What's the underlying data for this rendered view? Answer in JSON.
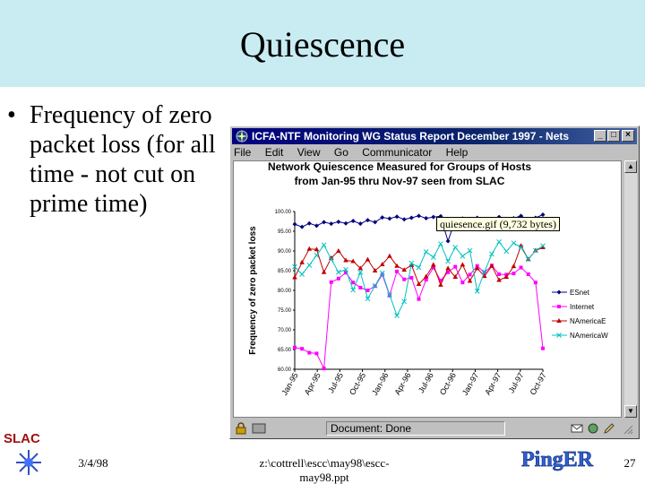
{
  "slide": {
    "title": "Quiescence",
    "bullet_mark": "•",
    "bullet_text": "Frequency of zero packet loss (for all time - not cut on prime time)",
    "date": "3/4/98",
    "path_line1": "z:\\cottrell\\escc\\may98\\escc-",
    "path_line2": "may98.ppt",
    "page_number": "27",
    "logo_slac": "SLAC",
    "logo_pinger": "PingER"
  },
  "window": {
    "title": "ICFA-NTF Monitoring WG Status Report December 1997 - Nets",
    "menu": [
      "File",
      "Edit",
      "View",
      "Go",
      "Communicator",
      "Help"
    ],
    "tooltip": "quiesence.gif (9,732 bytes)",
    "status": "Document: Done"
  },
  "chart_data": {
    "type": "line",
    "title": "Network Quiescence Measured for Groups of Hosts",
    "subtitle": "from Jan-95 thru Nov-97 seen from SLAC",
    "ylabel": "Frequency of zero packet loss",
    "xlabel": "",
    "ylim": [
      60,
      100
    ],
    "yticks": [
      "100.00",
      "95.00",
      "90.00",
      "85.00",
      "80.00",
      "75.00",
      "70.00",
      "65.00",
      "60.00"
    ],
    "xticks": [
      "Jan-95",
      "Apr-95",
      "Jul-95",
      "Oct-95",
      "Jan-96",
      "Apr-96",
      "Jul-96",
      "Oct-96",
      "Jan-97",
      "Apr-97",
      "Jul-97",
      "Oct-97"
    ],
    "n_points": 35,
    "series": [
      {
        "name": "ESnet",
        "color": "#000080",
        "marker": "diamond",
        "values": [
          96.8,
          96.1,
          97.0,
          96.4,
          97.3,
          96.9,
          97.4,
          97.0,
          97.6,
          96.9,
          97.8,
          97.3,
          98.5,
          98.2,
          98.7,
          98.0,
          98.4,
          98.9,
          98.3,
          98.6,
          98.8,
          92.5,
          97.9,
          98.2,
          97.6,
          98.4,
          98.0,
          97.4,
          98.6,
          97.8,
          98.3,
          98.9,
          97.8,
          98.4,
          99.2
        ]
      },
      {
        "name": "Internet",
        "color": "#ff00ff",
        "marker": "square",
        "values": [
          65.5,
          65.2,
          64.2,
          64.0,
          60.2,
          82.1,
          83.0,
          84.5,
          82.0,
          80.7,
          80.0,
          81.1,
          84.0,
          78.7,
          84.8,
          82.8,
          83.2,
          77.8,
          82.7,
          85.8,
          82.5,
          84.6,
          86.0,
          82.0,
          84.0,
          86.2,
          84.5,
          86.3,
          84.1,
          84.0,
          84.3,
          85.8,
          84.1,
          82.0,
          65.3
        ]
      },
      {
        "name": "NAmericaE",
        "color": "#c00000",
        "marker": "triangle",
        "values": [
          83.3,
          87.1,
          90.5,
          90.4,
          84.6,
          88.2,
          90.0,
          87.6,
          87.4,
          85.6,
          87.8,
          85.0,
          86.6,
          88.7,
          86.2,
          85.2,
          86.4,
          81.6,
          83.5,
          86.5,
          81.4,
          85.6,
          83.4,
          86.5,
          82.4,
          85.6,
          83.6,
          86.2,
          82.6,
          83.4,
          86.1,
          91.3,
          87.9,
          90.1,
          90.9
        ]
      },
      {
        "name": "NAmericaW",
        "color": "#00c0c0",
        "marker": "cross",
        "values": [
          86.0,
          84.1,
          86.4,
          88.9,
          91.5,
          87.9,
          84.6,
          85.3,
          80.1,
          84.6,
          77.9,
          81.2,
          84.4,
          78.9,
          73.6,
          77.2,
          86.9,
          85.8,
          89.8,
          88.4,
          91.8,
          87.4,
          90.9,
          88.7,
          90.1,
          79.8,
          84.7,
          89.2,
          92.3,
          89.9,
          92.0,
          90.9,
          87.9,
          90.1,
          91.3
        ]
      }
    ]
  }
}
